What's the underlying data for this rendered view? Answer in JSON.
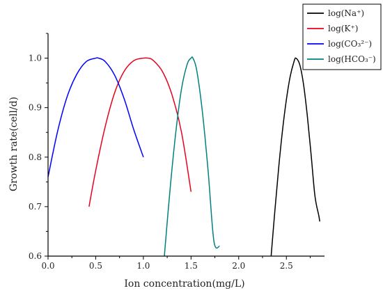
{
  "chart_data": {
    "type": "line",
    "title": "",
    "xlabel": "Ion concentration(mg/L)",
    "ylabel": "Growth rate(cell/d)",
    "xlim": [
      0.0,
      2.9
    ],
    "ylim": [
      0.6,
      1.05
    ],
    "xticks": [
      "0.0",
      "0.5",
      "1.0",
      "1.5",
      "2.0",
      "2.5"
    ],
    "yticks": [
      "0.6",
      "0.7",
      "0.8",
      "0.9",
      "1.0"
    ],
    "grid": false,
    "legend_position": "top-right",
    "series": [
      {
        "name": "log(Na⁺)",
        "color": "#000000",
        "x": [
          2.34,
          2.38,
          2.42,
          2.46,
          2.5,
          2.54,
          2.58,
          2.6,
          2.64,
          2.68,
          2.72,
          2.76,
          2.8,
          2.84,
          2.85
        ],
        "y": [
          0.6,
          0.693,
          0.78,
          0.855,
          0.916,
          0.963,
          0.993,
          1.0,
          0.987,
          0.947,
          0.883,
          0.804,
          0.721,
          0.682,
          0.67
        ]
      },
      {
        "name": "log(K⁺)",
        "color": "#e8001c",
        "x": [
          0.43,
          0.5,
          0.6,
          0.7,
          0.8,
          0.9,
          1.0,
          1.05,
          1.1,
          1.2,
          1.3,
          1.4,
          1.5
        ],
        "y": [
          0.7,
          0.773,
          0.862,
          0.931,
          0.974,
          0.995,
          1.0,
          1.0,
          0.996,
          0.973,
          0.926,
          0.85,
          0.73
        ]
      },
      {
        "name": "log(CO₃²⁻)",
        "color": "#0000ff",
        "x": [
          0.0,
          0.1,
          0.2,
          0.3,
          0.4,
          0.5,
          0.53,
          0.6,
          0.7,
          0.8,
          0.9,
          1.0
        ],
        "y": [
          0.76,
          0.852,
          0.922,
          0.967,
          0.993,
          1.0,
          1.0,
          0.993,
          0.965,
          0.917,
          0.855,
          0.8
        ]
      },
      {
        "name": "log(HCO₃⁻)",
        "color": "#008080",
        "x": [
          1.22,
          1.28,
          1.34,
          1.4,
          1.46,
          1.5,
          1.52,
          1.56,
          1.62,
          1.68,
          1.74,
          1.8
        ],
        "y": [
          0.6,
          0.735,
          0.85,
          0.938,
          0.988,
          1.0,
          1.0,
          0.975,
          0.89,
          0.77,
          0.63,
          0.62
        ]
      }
    ]
  }
}
